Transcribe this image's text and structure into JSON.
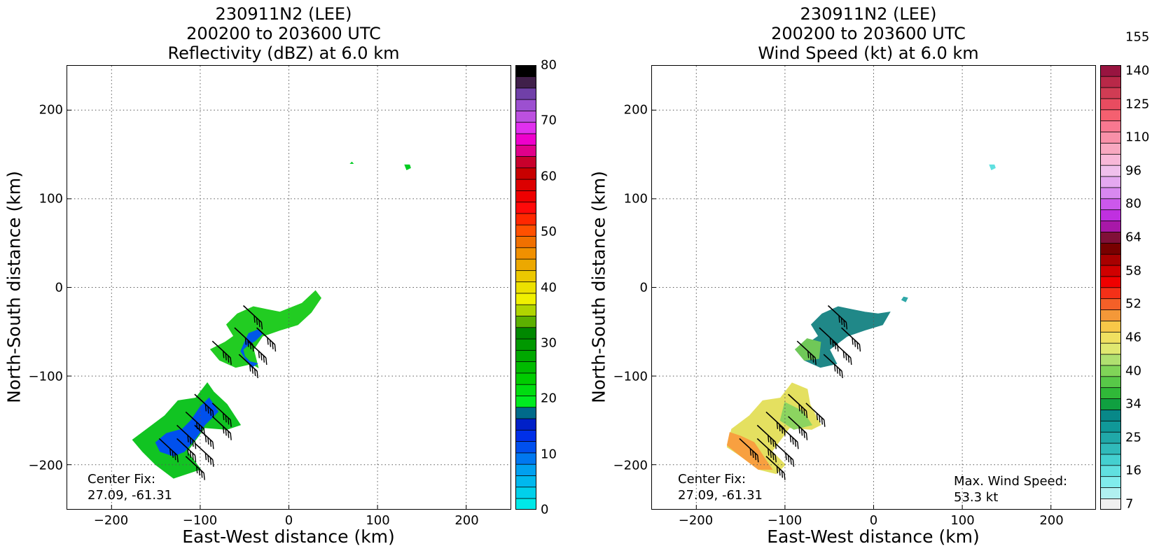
{
  "panels": [
    {
      "title_line1": "230911N2 (LEE)",
      "title_line2": "200200 to 203600 UTC",
      "title_line3": "Reflectivity (dBZ) at 6.0 km",
      "xlabel": "East-West distance (km)",
      "ylabel": "North-South distance (km)",
      "center_fix_label": "Center Fix:",
      "center_fix_value": "27.09, -61.31"
    },
    {
      "title_line1": "230911N2 (LEE)",
      "title_line2": "200200 to 203600 UTC",
      "title_line3": "Wind Speed (kt) at 6.0 km",
      "xlabel": "East-West distance (km)",
      "ylabel": "North-South distance (km)",
      "center_fix_label": "Center Fix:",
      "center_fix_value": "27.09, -61.31",
      "max_wind_label": "Max. Wind Speed:",
      "max_wind_value": "53.3 kt"
    }
  ],
  "chart_data": [
    {
      "type": "heatmap",
      "title": "230911N2 (LEE) 200200 to 203600 UTC Reflectivity (dBZ) at 6.0 km",
      "xlabel": "East-West distance (km)",
      "ylabel": "North-South distance (km)",
      "xlim": [
        -250,
        250
      ],
      "ylim": [
        -250,
        250
      ],
      "xticks": [
        -200,
        -100,
        0,
        100,
        200
      ],
      "yticks": [
        -200,
        -100,
        0,
        100,
        200
      ],
      "grid": true,
      "colorbar": {
        "label": "dBZ",
        "range": [
          0,
          80
        ],
        "ticks": [
          0,
          10,
          20,
          30,
          40,
          50,
          60,
          70,
          80
        ],
        "colors": [
          "#00e8e8",
          "#00d0ea",
          "#00b8ee",
          "#00a0f0",
          "#0078f0",
          "#0050ee",
          "#0030e8",
          "#0020c8",
          "#006a8a",
          "#00ea20",
          "#00dc10",
          "#00cc00",
          "#00ba00",
          "#00a800",
          "#009800",
          "#008800",
          "#5cb000",
          "#b0d400",
          "#f0f000",
          "#ece000",
          "#ecc800",
          "#eca800",
          "#f09000",
          "#f07000",
          "#ff5000",
          "#ff2800",
          "#ff0a0a",
          "#ee0000",
          "#dc0000",
          "#c80000",
          "#c8002c",
          "#e0008a",
          "#ee00cc",
          "#e030ee",
          "#bc50e0",
          "#9c50d0",
          "#7040a8",
          "#40204a",
          "#000000"
        ]
      },
      "regions": [
        {
          "name": "northern fragment",
          "color": "#00cc22",
          "points": [
            [
              70,
              140
            ],
            [
              71,
              141
            ],
            [
              72,
              140
            ]
          ]
        },
        {
          "name": "northern fragment 2",
          "color": "#00cc22",
          "points": [
            [
              131,
              138
            ],
            [
              136,
              138
            ],
            [
              137,
              135
            ],
            [
              133,
              133
            ]
          ]
        },
        {
          "name": "middle band",
          "color": "#22cc22",
          "points": [
            [
              -72,
              -62
            ],
            [
              -88,
              -70
            ],
            [
              -78,
              -82
            ],
            [
              -60,
              -90
            ],
            [
              -42,
              -86
            ],
            [
              -35,
              -90
            ],
            [
              -40,
              -70
            ],
            [
              -30,
              -55
            ],
            [
              -10,
              -48
            ],
            [
              10,
              -42
            ],
            [
              25,
              -28
            ],
            [
              36,
              -12
            ],
            [
              30,
              -4
            ],
            [
              15,
              -18
            ],
            [
              -10,
              -28
            ],
            [
              -25,
              -25
            ],
            [
              -40,
              -22
            ],
            [
              -58,
              -30
            ],
            [
              -70,
              -42
            ],
            [
              -62,
              -55
            ]
          ]
        },
        {
          "name": "middle band cells",
          "color": "#0058e8",
          "points": [
            [
              -48,
              -58
            ],
            [
              -45,
              -52
            ],
            [
              -35,
              -48
            ],
            [
              -30,
              -52
            ],
            [
              -38,
              -60
            ],
            [
              -45,
              -64
            ],
            [
              -52,
              -70
            ],
            [
              -50,
              -78
            ],
            [
              -44,
              -84
            ],
            [
              -36,
              -86
            ],
            [
              -42,
              -90
            ],
            [
              -48,
              -82
            ],
            [
              -54,
              -72
            ]
          ]
        },
        {
          "name": "southern band",
          "color": "#11c422",
          "points": [
            [
              -176,
              -172
            ],
            [
              -160,
              -160
            ],
            [
              -140,
              -145
            ],
            [
              -125,
              -128
            ],
            [
              -105,
              -125
            ],
            [
              -92,
              -108
            ],
            [
              -85,
              -118
            ],
            [
              -70,
              -132
            ],
            [
              -55,
              -155
            ],
            [
              -70,
              -160
            ],
            [
              -95,
              -158
            ],
            [
              -115,
              -185
            ],
            [
              -100,
              -205
            ],
            [
              -130,
              -215
            ],
            [
              -150,
              -200
            ],
            [
              -165,
              -185
            ]
          ]
        },
        {
          "name": "southern band cells",
          "color": "#0050ee",
          "points": [
            [
              -150,
              -175
            ],
            [
              -138,
              -165
            ],
            [
              -120,
              -160
            ],
            [
              -110,
              -150
            ],
            [
              -100,
              -135
            ],
            [
              -90,
              -125
            ],
            [
              -80,
              -140
            ],
            [
              -95,
              -155
            ],
            [
              -105,
              -170
            ],
            [
              -118,
              -185
            ],
            [
              -130,
              -190
            ],
            [
              -145,
              -185
            ]
          ]
        }
      ],
      "wind_barbs": [
        [
          -45,
          -30
        ],
        [
          -55,
          -55
        ],
        [
          -30,
          -55
        ],
        [
          -80,
          -70
        ],
        [
          -40,
          -70
        ],
        [
          -50,
          -85
        ],
        [
          -100,
          -130
        ],
        [
          -80,
          -140
        ],
        [
          -110,
          -150
        ],
        [
          -80,
          -155
        ],
        [
          -120,
          -165
        ],
        [
          -100,
          -165
        ],
        [
          -140,
          -180
        ],
        [
          -120,
          -180
        ],
        [
          -100,
          -185
        ],
        [
          -110,
          -200
        ]
      ],
      "annotations": [
        "Center Fix:",
        "27.09, -61.31"
      ]
    },
    {
      "type": "heatmap",
      "title": "230911N2 (LEE) 200200 to 203600 UTC Wind Speed (kt) at 6.0 km",
      "xlabel": "East-West distance (km)",
      "ylabel": "North-South distance (km)",
      "xlim": [
        -250,
        250
      ],
      "ylim": [
        -250,
        250
      ],
      "xticks": [
        -200,
        -100,
        0,
        100,
        200
      ],
      "yticks": [
        -200,
        -100,
        0,
        100,
        200
      ],
      "grid": true,
      "colorbar": {
        "label": "kt",
        "tick_labels": [
          "7",
          "16",
          "25",
          "34",
          "40",
          "46",
          "52",
          "58",
          "64",
          "80",
          "96",
          "110",
          "125",
          "140",
          "155"
        ],
        "colors": [
          "#f0f0f0",
          "#b0f0f0",
          "#80ecec",
          "#60e0e0",
          "#44d0d0",
          "#30baba",
          "#20a8a8",
          "#109898",
          "#088888",
          "#10a040",
          "#30b838",
          "#58c848",
          "#80d458",
          "#b0e070",
          "#e0e870",
          "#f0e060",
          "#f8c848",
          "#f49838",
          "#f46028",
          "#f43018",
          "#f00000",
          "#d00000",
          "#a80000",
          "#780000",
          "#801038",
          "#a818a8",
          "#c030e0",
          "#cc58ec",
          "#d888f0",
          "#e4a8f0",
          "#f0c0ec",
          "#f8b8d8",
          "#f8a8c0",
          "#f890a8",
          "#f87890",
          "#f46070",
          "#e84c60",
          "#d03c54",
          "#b82848",
          "#981440"
        ]
      },
      "regions": [
        {
          "name": "northern fragment",
          "color": "#60e0e0",
          "points": [
            [
              131,
              138
            ],
            [
              136,
              138
            ],
            [
              137,
              135
            ],
            [
              133,
              133
            ]
          ]
        },
        {
          "name": "middle band",
          "color": "#208888",
          "points": [
            [
              -72,
              -62
            ],
            [
              -88,
              -70
            ],
            [
              -78,
              -82
            ],
            [
              -60,
              -90
            ],
            [
              -42,
              -86
            ],
            [
              -50,
              -70
            ],
            [
              -30,
              -55
            ],
            [
              -10,
              -48
            ],
            [
              10,
              -42
            ],
            [
              18,
              -28
            ],
            [
              5,
              -30
            ],
            [
              -10,
              -28
            ],
            [
              -25,
              -25
            ],
            [
              -40,
              -22
            ],
            [
              -58,
              -30
            ],
            [
              -70,
              -42
            ],
            [
              -62,
              -55
            ]
          ]
        },
        {
          "name": "middle band tail",
          "color": "#30a8a8",
          "points": [
            [
              32,
              -14
            ],
            [
              36,
              -16
            ],
            [
              38,
              -12
            ],
            [
              34,
              -11
            ]
          ]
        },
        {
          "name": "middle band southwest",
          "color": "#70c858",
          "points": [
            [
              -88,
              -70
            ],
            [
              -78,
              -82
            ],
            [
              -62,
              -80
            ],
            [
              -60,
              -62
            ],
            [
              -75,
              -58
            ]
          ]
        },
        {
          "name": "southern band",
          "color": "#e4e060",
          "points": [
            [
              -160,
              -160
            ],
            [
              -140,
              -145
            ],
            [
              -125,
              -128
            ],
            [
              -105,
              -125
            ],
            [
              -92,
              -108
            ],
            [
              -75,
              -115
            ],
            [
              -72,
              -132
            ],
            [
              -60,
              -155
            ],
            [
              -70,
              -160
            ],
            [
              -95,
              -158
            ],
            [
              -115,
              -185
            ],
            [
              -100,
              -200
            ],
            [
              -110,
              -210
            ],
            [
              -130,
              -205
            ],
            [
              -150,
              -190
            ],
            [
              -165,
              -180
            ]
          ]
        },
        {
          "name": "southern band core",
          "color": "#f8a040",
          "points": [
            [
              -162,
              -164
            ],
            [
              -150,
              -168
            ],
            [
              -135,
              -175
            ],
            [
              -125,
              -190
            ],
            [
              -115,
              -205
            ],
            [
              -130,
              -205
            ],
            [
              -150,
              -190
            ],
            [
              -165,
              -178
            ]
          ]
        },
        {
          "name": "southern band green",
          "color": "#8cd460",
          "points": [
            [
              -100,
              -130
            ],
            [
              -80,
              -140
            ],
            [
              -70,
              -155
            ],
            [
              -90,
              -160
            ],
            [
              -105,
              -150
            ]
          ]
        }
      ],
      "wind_barbs": [
        [
          -45,
          -30
        ],
        [
          -55,
          -55
        ],
        [
          -30,
          -55
        ],
        [
          -80,
          -70
        ],
        [
          -40,
          -70
        ],
        [
          -50,
          -85
        ],
        [
          -90,
          -130
        ],
        [
          -70,
          -140
        ],
        [
          -115,
          -150
        ],
        [
          -90,
          -155
        ],
        [
          -125,
          -165
        ],
        [
          -100,
          -165
        ],
        [
          -145,
          -180
        ],
        [
          -125,
          -180
        ],
        [
          -105,
          -185
        ],
        [
          -115,
          -200
        ]
      ],
      "annotations": [
        "Center Fix:",
        "27.09, -61.31",
        "Max. Wind Speed:",
        "53.3 kt"
      ]
    }
  ]
}
